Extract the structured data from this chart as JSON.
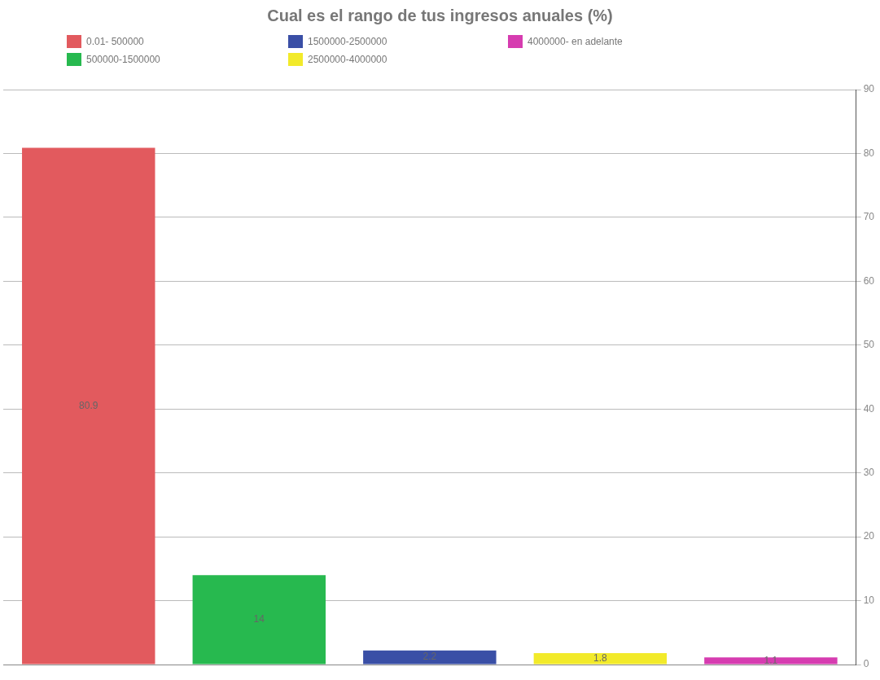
{
  "chart_data": {
    "type": "bar",
    "title": "Cual es el rango de tus ingresos anuales (%)",
    "categories": [
      null
    ],
    "series": [
      {
        "name": "0.01- 500000",
        "color": "#e25a5e",
        "values": [
          80.9
        ]
      },
      {
        "name": "500000-1500000",
        "color": "#27b94f",
        "values": [
          14
        ]
      },
      {
        "name": "1500000-2500000",
        "color": "#3a4fa6",
        "values": [
          2.2
        ]
      },
      {
        "name": "2500000-4000000",
        "color": "#f2ea2a",
        "values": [
          1.8
        ]
      },
      {
        "name": "4000000- en adelante",
        "color": "#d63cb0",
        "values": [
          1.1
        ]
      }
    ],
    "ylim": [
      0,
      90
    ],
    "yticks": [
      0,
      10,
      20,
      30,
      40,
      50,
      60,
      70,
      80,
      90
    ],
    "grid": "y",
    "legend": "top",
    "data_labels": true,
    "tick_labels": "y"
  }
}
